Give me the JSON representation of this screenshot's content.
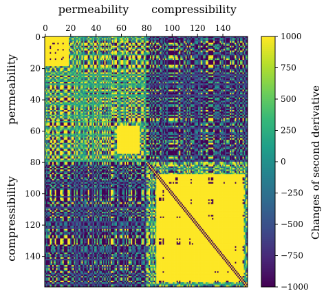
{
  "chart_data": {
    "type": "heatmap",
    "matrix_size": 160,
    "x_ticks": [
      0,
      20,
      40,
      60,
      80,
      100,
      120,
      140
    ],
    "y_ticks": [
      0,
      20,
      40,
      60,
      80,
      100,
      120,
      140
    ],
    "x_tick_labels": [
      "0",
      "20",
      "40",
      "60",
      "80",
      "100",
      "120",
      "140"
    ],
    "y_tick_labels": [
      "0",
      "20",
      "40",
      "60",
      "80",
      "100",
      "120",
      "140"
    ],
    "x_axis_position": "top",
    "block_split": 80,
    "group_labels": {
      "top": [
        "permeability",
        "compressibility"
      ],
      "left": [
        "permeability",
        "compressibility"
      ]
    },
    "colorbar": {
      "label": "Changes of second derivative",
      "min": -1000,
      "max": 1000,
      "ticks": [
        1000,
        750,
        500,
        250,
        0,
        -250,
        -500,
        -750,
        -1000
      ],
      "tick_labels": [
        "1000",
        "750",
        "500",
        "250",
        "0",
        "−250",
        "−500",
        "−750",
        "−1000"
      ],
      "colormap": "viridis"
    },
    "colors": {
      "low": "#440154",
      "mid": "#21918c",
      "high": "#fde725"
    },
    "grid": false,
    "legend": "none",
    "pattern_notes": "symmetric matrix, values clipped to [-1000, 1000]; mostly saturated yellow (high) and purple (low); bright yellow diagonal in compressibility block; large yellow blocks near (0-20,0-20), (55-75,55-75), (85-155,85-155)"
  }
}
